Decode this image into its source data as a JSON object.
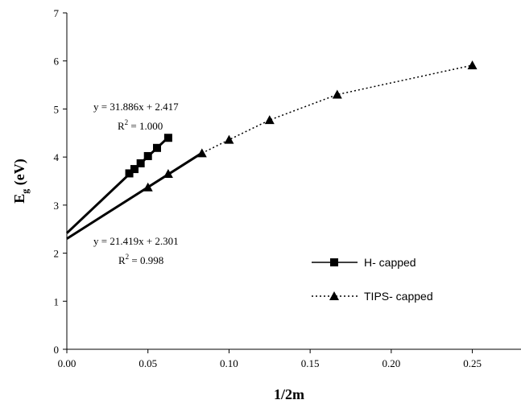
{
  "chart_data": {
    "type": "scatter",
    "xlabel": "1/2m",
    "ylabel": "E",
    "ylabel_sub": "g",
    "ylabel_unit": " (eV)",
    "xlim": [
      0,
      0.28
    ],
    "ylim": [
      0,
      7
    ],
    "x_ticks": [
      "0.00",
      "0.05",
      "0.10",
      "0.15",
      "0.20",
      "0.25"
    ],
    "x_tick_values": [
      0,
      0.05,
      0.1,
      0.15,
      0.2,
      0.25
    ],
    "y_ticks": [
      "0",
      "1",
      "2",
      "3",
      "4",
      "5",
      "6",
      "7"
    ],
    "y_tick_values": [
      0,
      1,
      2,
      3,
      4,
      5,
      6,
      7
    ],
    "grid": false,
    "legend_position": "lower-right",
    "series": [
      {
        "name": "H- capped",
        "marker": "square",
        "line": "solid",
        "color": "#000000",
        "x": [
          0.0385,
          0.0417,
          0.0455,
          0.05,
          0.0556,
          0.0625
        ],
        "y": [
          3.66,
          3.75,
          3.87,
          4.02,
          4.19,
          4.4
        ]
      },
      {
        "name": "TIPS- capped",
        "marker": "triangle",
        "line": "dotted",
        "color": "#000000",
        "x": [
          0.05,
          0.0625,
          0.0833,
          0.1,
          0.125,
          0.1667,
          0.25
        ],
        "y": [
          3.37,
          3.65,
          4.08,
          4.36,
          4.77,
          5.3,
          5.91
        ]
      }
    ],
    "fits": [
      {
        "series": "H- capped",
        "slope": 31.886,
        "intercept": 2.417,
        "x_range": [
          0,
          0.0625
        ],
        "equation": "y = 31.886x + 2.417",
        "r2_prefix": "R",
        "r2_sup": "2",
        "r2_value": " = 1.000"
      },
      {
        "series": "TIPS- capped",
        "slope": 21.419,
        "intercept": 2.301,
        "x_range": [
          0,
          0.0833
        ],
        "equation": "y = 21.419x + 2.301",
        "r2_prefix": "R",
        "r2_sup": "2",
        "r2_value": " = 0.998"
      }
    ]
  }
}
